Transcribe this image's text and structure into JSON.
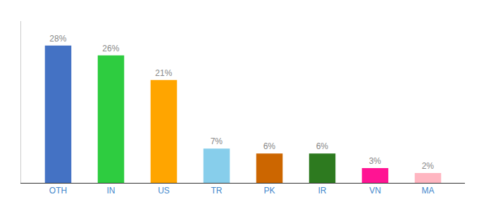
{
  "chart_data": {
    "type": "bar",
    "categories": [
      "OTH",
      "IN",
      "US",
      "TR",
      "PK",
      "IR",
      "VN",
      "MA"
    ],
    "values": [
      28,
      26,
      21,
      7,
      6,
      6,
      3,
      2
    ],
    "value_labels": [
      "28%",
      "26%",
      "21%",
      "7%",
      "6%",
      "6%",
      "3%",
      "2%"
    ],
    "colors": [
      "#4472C4",
      "#2ECC40",
      "#FFA500",
      "#87CEEB",
      "#CC6600",
      "#2D7A1F",
      "#FF1493",
      "#FFB6C1"
    ],
    "ylim": [
      0,
      33
    ],
    "yticks": [],
    "grid": false,
    "data_labels": true,
    "tick_labels": "x"
  }
}
